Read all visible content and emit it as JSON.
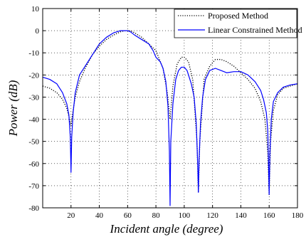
{
  "chart_data": {
    "type": "line",
    "title": "",
    "xlabel": "Incident angle (degree)",
    "ylabel": "Power (dB)",
    "xlim": [
      0,
      180
    ],
    "ylim": [
      -80,
      10
    ],
    "xticks": [
      "20",
      "40",
      "60",
      "80",
      "100",
      "120",
      "140",
      "160",
      "180"
    ],
    "yticks": [
      "10",
      "0",
      "-10",
      "-20",
      "-30",
      "-40",
      "-50",
      "-60",
      "-70",
      "-80"
    ],
    "grid": true,
    "legend_position": "top-right",
    "series": [
      {
        "name": "Proposed Method",
        "color": "#000000",
        "style": "dotted",
        "x": [
          0,
          5,
          10,
          14,
          17,
          19,
          20,
          21,
          23,
          26,
          30,
          35,
          40,
          45,
          50,
          55,
          58,
          60,
          62,
          65,
          70,
          75,
          80,
          85,
          88,
          90,
          92,
          95,
          98,
          100,
          103,
          106,
          109,
          110,
          111,
          114,
          118,
          122,
          126,
          130,
          135,
          140,
          145,
          150,
          154,
          157,
          159,
          160,
          161,
          163,
          166,
          170,
          175,
          180
        ],
        "y": [
          -25,
          -26,
          -28,
          -31,
          -35,
          -40,
          -43,
          -38,
          -30,
          -23,
          -17,
          -11,
          -7,
          -4,
          -2,
          -0.5,
          0,
          0,
          0,
          -1,
          -3,
          -6,
          -9,
          -17,
          -28,
          -40,
          -25,
          -15,
          -12,
          -12,
          -14,
          -22,
          -50,
          -73,
          -50,
          -22,
          -16,
          -13,
          -13,
          -14,
          -16,
          -19,
          -22,
          -26,
          -32,
          -40,
          -55,
          -74,
          -50,
          -36,
          -29,
          -26,
          -25,
          -24
        ]
      },
      {
        "name": "Linear Constrained Method",
        "color": "#0000ff",
        "style": "solid",
        "x": [
          0,
          5,
          10,
          14,
          17,
          18.5,
          19.5,
          20,
          20.5,
          21.5,
          23,
          26,
          30,
          35,
          40,
          45,
          50,
          55,
          58,
          60,
          62,
          65,
          70,
          75,
          78,
          80,
          83,
          85,
          87,
          88.5,
          89.5,
          90,
          90.5,
          92,
          94,
          96,
          98,
          100,
          102,
          105,
          107,
          108.5,
          109.5,
          110,
          110.5,
          111.5,
          113,
          115,
          118,
          122,
          126,
          130,
          135,
          140,
          145,
          150,
          154,
          156,
          158,
          159,
          159.5,
          160,
          160.5,
          161.5,
          163,
          166,
          170,
          175,
          180
        ],
        "y": [
          -21,
          -22,
          -24,
          -28,
          -33,
          -38,
          -48,
          -64,
          -48,
          -37,
          -28,
          -20,
          -16,
          -11,
          -6,
          -3,
          -1,
          0,
          0,
          0,
          -0.5,
          -2,
          -4,
          -6,
          -9,
          -12,
          -14,
          -17,
          -23,
          -34,
          -54,
          -79,
          -50,
          -33,
          -22,
          -18,
          -16.5,
          -16.5,
          -18,
          -24,
          -30,
          -42,
          -60,
          -73,
          -58,
          -42,
          -30,
          -22,
          -18,
          -17,
          -18,
          -19,
          -18.5,
          -18.5,
          -20,
          -23,
          -27,
          -31,
          -37,
          -45,
          -58,
          -74,
          -56,
          -40,
          -32,
          -28,
          -25.5,
          -24.5,
          -24
        ]
      }
    ]
  }
}
